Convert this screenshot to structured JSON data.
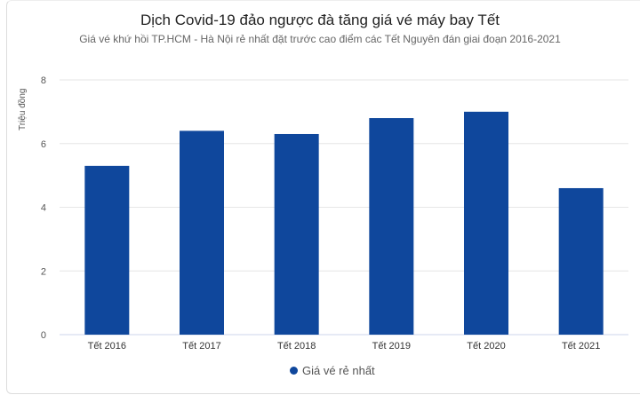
{
  "chart_data": {
    "type": "bar",
    "title": "Dịch Covid-19 đảo ngược đà tăng giá vé máy bay Tết",
    "subtitle": "Giá vé khứ hồi TP.HCM - Hà Nội rẻ nhất đặt trước cao điểm các Tết Nguyên đán giai đoạn 2016-2021",
    "xlabel": "",
    "ylabel": "Triệu đồng",
    "categories": [
      "Tết 2016",
      "Tết 2017",
      "Tết 2018",
      "Tết 2019",
      "Tết 2020",
      "Tết 2021"
    ],
    "series": [
      {
        "name": "Giá vé rẻ nhất",
        "values": [
          5.3,
          6.4,
          6.3,
          6.8,
          7.0,
          4.6
        ],
        "color": "#0f479c"
      }
    ],
    "ylim": [
      0,
      8
    ],
    "yticks": [
      "0",
      "2",
      "4",
      "6",
      "8"
    ],
    "grid": true,
    "legend": "bottom"
  }
}
